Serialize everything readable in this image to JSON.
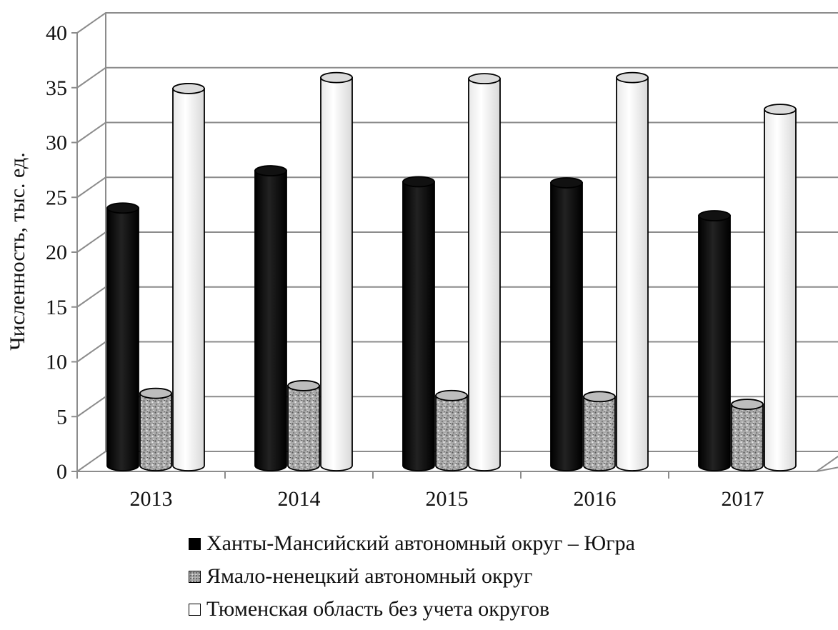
{
  "chart_data": {
    "type": "bar",
    "title": "",
    "xlabel": "",
    "ylabel": "Численность, тыс. ед.",
    "categories": [
      "2013",
      "2014",
      "2015",
      "2016",
      "2017"
    ],
    "y_ticks": [
      "0",
      "5",
      "10",
      "15",
      "20",
      "25",
      "30",
      "35",
      "40"
    ],
    "ylim": [
      0,
      40
    ],
    "grid": true,
    "legend_position": "bottom",
    "series": [
      {
        "name": "Ханты-Мансийский автономный округ – Югра",
        "values": [
          23.5,
          26.9,
          25.9,
          25.8,
          22.8
        ],
        "color": "#000000"
      },
      {
        "name": "Ямало-ненецкий автономный округ",
        "values": [
          6.6,
          7.3,
          6.4,
          6.3,
          5.6
        ],
        "color": "#a8a8a8"
      },
      {
        "name": "Тюменская область без учета округов",
        "values": [
          34.4,
          35.4,
          35.3,
          35.4,
          32.5
        ],
        "color": "#ffffff"
      }
    ]
  }
}
